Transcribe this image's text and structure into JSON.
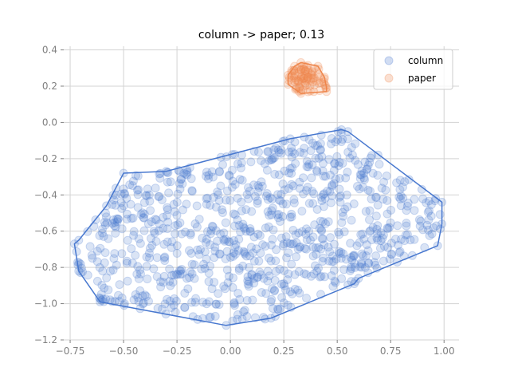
{
  "chart_data": {
    "type": "scatter",
    "title": "column -> paper; 0.13",
    "xlabel": "",
    "ylabel": "",
    "xlim": [
      -0.78,
      1.07
    ],
    "ylim": [
      -1.2,
      0.42
    ],
    "x_ticks": [
      "−0.75",
      "−0.50",
      "−0.25",
      "0.00",
      "0.25",
      "0.50",
      "0.75",
      "1.00"
    ],
    "x_tick_values": [
      -0.75,
      -0.5,
      -0.25,
      0.0,
      0.25,
      0.5,
      0.75,
      1.0
    ],
    "y_ticks": [
      "0.4",
      "0.2",
      "0.0",
      "−0.2",
      "−0.4",
      "−0.6",
      "−0.8",
      "−1.0",
      "−1.2"
    ],
    "y_tick_values": [
      0.4,
      0.2,
      0.0,
      -0.2,
      -0.4,
      -0.6,
      -0.8,
      -1.0,
      -1.2
    ],
    "grid": true,
    "legend_position": "top-right",
    "series": [
      {
        "name": "column",
        "color": "#4878cf",
        "point_count": 900,
        "hull": [
          [
            0.52,
            -0.04
          ],
          [
            0.55,
            -0.05
          ],
          [
            0.99,
            -0.44
          ],
          [
            0.99,
            -0.56
          ],
          [
            0.97,
            -0.68
          ],
          [
            0.6,
            -0.86
          ],
          [
            0.58,
            -0.89
          ],
          [
            0.21,
            -1.07
          ],
          [
            0.19,
            -1.08
          ],
          [
            -0.02,
            -1.12
          ],
          [
            -0.61,
            -0.99
          ],
          [
            -0.71,
            -0.82
          ],
          [
            -0.73,
            -0.67
          ],
          [
            -0.71,
            -0.65
          ],
          [
            -0.58,
            -0.46
          ],
          [
            -0.5,
            -0.28
          ],
          [
            -0.3,
            -0.27
          ],
          [
            0.28,
            -0.09
          ]
        ]
      },
      {
        "name": "paper",
        "color": "#ee854a",
        "point_count": 80,
        "hull": [
          [
            0.3,
            0.31
          ],
          [
            0.33,
            0.33
          ],
          [
            0.41,
            0.31
          ],
          [
            0.44,
            0.25
          ],
          [
            0.45,
            0.19
          ],
          [
            0.45,
            0.17
          ],
          [
            0.33,
            0.16
          ],
          [
            0.27,
            0.21
          ],
          [
            0.27,
            0.26
          ]
        ]
      }
    ]
  }
}
